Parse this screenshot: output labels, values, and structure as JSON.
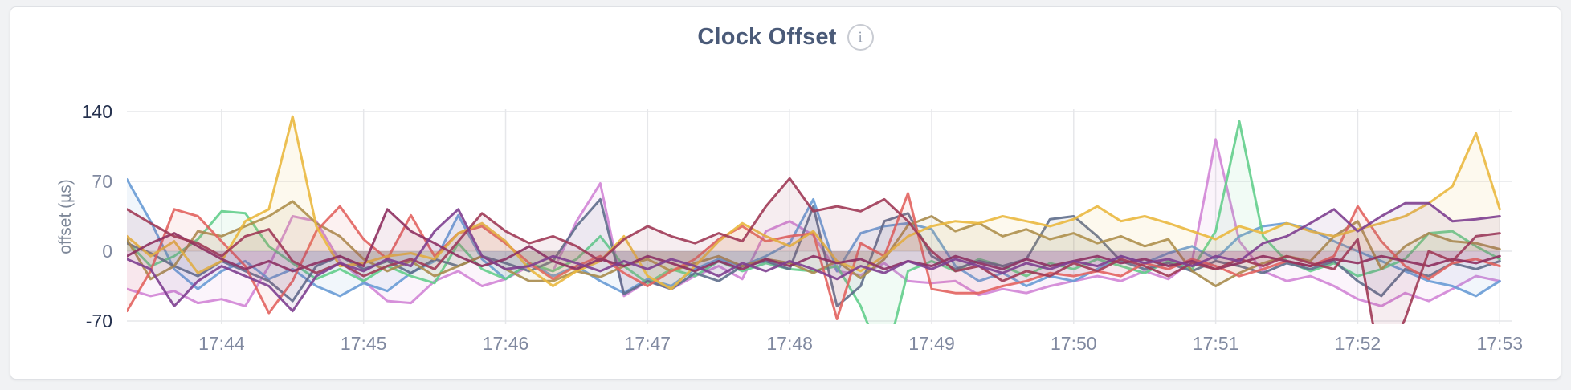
{
  "header": {
    "title": "Clock Offset",
    "info_icon_glyph": "i"
  },
  "colors": {
    "page_background": "#f1f2f4",
    "card_background": "#ffffff",
    "card_border": "#dfe1e5",
    "title_text": "#4a5a78",
    "grid_line": "#e6e7ea",
    "axis_tick_text": "#8089a0",
    "axis_tick_text_dark": "#25314e",
    "axis_title_text": "#7d8798"
  },
  "chart_data": {
    "type": "line",
    "title": "Clock Offset",
    "ylabel": "offset (µs)",
    "xlabel": "",
    "grid": true,
    "legend_position": "none",
    "ylim": [
      -75,
      140
    ],
    "y_ticks": [
      {
        "value": 140,
        "label": "140",
        "emphasis": true
      },
      {
        "value": 70,
        "label": "70",
        "emphasis": false
      },
      {
        "value": 0,
        "label": "0",
        "emphasis": false
      },
      {
        "value": -70,
        "label": "-70",
        "emphasis": true
      }
    ],
    "x_total_seconds": 585,
    "point_interval_seconds": 10,
    "x_ticks": [
      {
        "label": "17:44",
        "seconds": 40
      },
      {
        "label": "17:45",
        "seconds": 100
      },
      {
        "label": "17:46",
        "seconds": 160
      },
      {
        "label": "17:47",
        "seconds": 220
      },
      {
        "label": "17:48",
        "seconds": 280
      },
      {
        "label": "17:49",
        "seconds": 340
      },
      {
        "label": "17:50",
        "seconds": 400
      },
      {
        "label": "17:51",
        "seconds": 460
      },
      {
        "label": "17:52",
        "seconds": 520
      },
      {
        "label": "17:53",
        "seconds": 580
      }
    ],
    "line_width": 3,
    "line_opacity": 0.9,
    "area_fill_opacity": 0.09,
    "series": [
      {
        "name": "orchid",
        "color": "#d285d6",
        "values": [
          -38,
          -45,
          -40,
          -52,
          -48,
          -55,
          -15,
          35,
          30,
          -10,
          -30,
          -50,
          -52,
          -30,
          -20,
          -35,
          -28,
          -15,
          -20,
          30,
          68,
          -45,
          -30,
          -38,
          -25,
          -15,
          -28,
          20,
          30,
          16,
          -20,
          -24,
          -12,
          -30,
          -32,
          -30,
          -44,
          -38,
          -42,
          -35,
          -30,
          -25,
          -30,
          -20,
          -28,
          -10,
          112,
          10,
          -20,
          -30,
          -25,
          -35,
          -48,
          -55,
          -42,
          -50,
          -38,
          -25,
          -30
        ]
      },
      {
        "name": "blue",
        "color": "#689bd5",
        "values": [
          72,
          30,
          -18,
          -38,
          -20,
          -10,
          -28,
          -18,
          -35,
          -45,
          -32,
          -40,
          -22,
          -10,
          36,
          -8,
          -28,
          -12,
          -25,
          -15,
          -30,
          -42,
          -28,
          -35,
          -18,
          -8,
          -15,
          -5,
          8,
          52,
          -20,
          18,
          25,
          28,
          22,
          -15,
          -30,
          -22,
          -35,
          -25,
          -30,
          -18,
          -5,
          -12,
          -2,
          5,
          -8,
          15,
          25,
          28,
          22,
          10,
          0,
          -10,
          -20,
          -30,
          -35,
          -45,
          -30
        ]
      },
      {
        "name": "green",
        "color": "#63ce8c",
        "values": [
          10,
          -15,
          -5,
          12,
          40,
          38,
          5,
          -12,
          -28,
          -18,
          -30,
          -15,
          -25,
          -32,
          8,
          -18,
          -28,
          -12,
          -20,
          -8,
          15,
          -15,
          -32,
          -18,
          -25,
          -10,
          -20,
          -12,
          -18,
          -20,
          -15,
          -55,
          -115,
          -20,
          -10,
          -20,
          -8,
          -15,
          -25,
          -12,
          -18,
          -8,
          -15,
          -22,
          -10,
          -18,
          20,
          130,
          15,
          -10,
          -20,
          -12,
          -25,
          -18,
          -8,
          18,
          20,
          5,
          -8
        ]
      },
      {
        "name": "slate",
        "color": "#5f6e8c",
        "values": [
          8,
          -2,
          -15,
          -25,
          -10,
          -20,
          -30,
          -50,
          -15,
          -5,
          -18,
          -10,
          -22,
          -8,
          -15,
          -5,
          -12,
          -20,
          -10,
          25,
          52,
          -43,
          -30,
          -38,
          -22,
          -30,
          -15,
          -10,
          -18,
          45,
          -55,
          -35,
          30,
          38,
          -5,
          -18,
          -10,
          -15,
          -8,
          32,
          35,
          15,
          -10,
          -18,
          -12,
          -20,
          -10,
          -15,
          -22,
          -12,
          -18,
          -10,
          -30,
          -45,
          -18,
          -25,
          -12,
          -18,
          -10
        ]
      },
      {
        "name": "olive",
        "color": "#a98c4e",
        "values": [
          12,
          -28,
          -15,
          20,
          15,
          25,
          35,
          50,
          28,
          15,
          -8,
          -20,
          -10,
          -25,
          -15,
          -5,
          -18,
          -30,
          -30,
          -20,
          -26,
          -15,
          -8,
          -20,
          -12,
          -5,
          -15,
          -8,
          -12,
          -22,
          -10,
          -27,
          -8,
          26,
          35,
          20,
          28,
          15,
          22,
          12,
          18,
          8,
          15,
          5,
          12,
          -20,
          -35,
          -22,
          -12,
          -5,
          -10,
          15,
          30,
          -18,
          5,
          18,
          10,
          8,
          2
        ]
      },
      {
        "name": "salmon",
        "color": "#e2635f",
        "values": [
          -60,
          -20,
          42,
          35,
          10,
          -15,
          -62,
          -30,
          20,
          45,
          12,
          -8,
          36,
          -5,
          18,
          25,
          8,
          -12,
          -28,
          -15,
          -5,
          -22,
          -35,
          -20,
          -8,
          12,
          25,
          10,
          15,
          18,
          -68,
          8,
          -5,
          58,
          -38,
          -42,
          -42,
          -35,
          -30,
          -22,
          -25,
          -20,
          -25,
          -12,
          -18,
          -8,
          -15,
          -25,
          -18,
          -10,
          -15,
          -5,
          45,
          10,
          -15,
          -28,
          -12,
          -8,
          -15
        ]
      },
      {
        "name": "gold",
        "color": "#eab83f",
        "values": [
          15,
          -5,
          10,
          -22,
          -10,
          30,
          42,
          135,
          25,
          -15,
          -12,
          -5,
          -2,
          -8,
          18,
          28,
          10,
          -18,
          -35,
          -20,
          -10,
          15,
          -25,
          -38,
          -15,
          10,
          28,
          15,
          5,
          20,
          -10,
          -20,
          -5,
          15,
          25,
          30,
          28,
          35,
          30,
          25,
          32,
          45,
          30,
          35,
          28,
          20,
          12,
          25,
          18,
          28,
          20,
          15,
          22,
          28,
          35,
          48,
          65,
          118,
          42
        ]
      },
      {
        "name": "berry",
        "color": "#8e2f5f",
        "values": [
          -5,
          8,
          18,
          5,
          -8,
          -18,
          -10,
          -20,
          -12,
          -5,
          -15,
          42,
          20,
          8,
          -5,
          -15,
          -8,
          5,
          -10,
          -18,
          -8,
          -15,
          -5,
          -12,
          -20,
          -10,
          -18,
          -8,
          -15,
          -5,
          -12,
          -8,
          -18,
          -10,
          -15,
          -5,
          -12,
          -18,
          -8,
          -15,
          -10,
          -5,
          -12,
          -8,
          -15,
          -10,
          -18,
          -12,
          -5,
          -10,
          -15,
          -8,
          -12,
          -5,
          -10,
          -15,
          -8,
          -12,
          -5
        ]
      },
      {
        "name": "wine",
        "color": "#a03a56",
        "values": [
          42,
          28,
          15,
          8,
          -5,
          15,
          22,
          -10,
          -22,
          -12,
          -25,
          -15,
          -8,
          -18,
          10,
          38,
          20,
          8,
          15,
          5,
          -10,
          12,
          25,
          15,
          8,
          18,
          10,
          45,
          73,
          40,
          45,
          40,
          52,
          30,
          0,
          -20,
          -15,
          -30,
          -20,
          -25,
          -12,
          -20,
          -8,
          -15,
          -25,
          -12,
          -18,
          -8,
          -15,
          -5,
          -12,
          -18,
          12,
          -120,
          -68,
          0,
          -10,
          15,
          18
        ]
      },
      {
        "name": "plum",
        "color": "#7e3f90",
        "values": [
          -8,
          -18,
          -55,
          -30,
          -15,
          -25,
          -35,
          -60,
          -25,
          -12,
          -20,
          -8,
          -15,
          20,
          42,
          -5,
          -18,
          -15,
          -5,
          -12,
          -20,
          -10,
          -18,
          -8,
          -15,
          -25,
          -12,
          -20,
          -10,
          -18,
          -28,
          -15,
          -22,
          -10,
          -18,
          -8,
          -15,
          -22,
          -12,
          -18,
          -10,
          -15,
          -5,
          -12,
          -8,
          -15,
          -5,
          -10,
          8,
          15,
          28,
          42,
          20,
          35,
          48,
          48,
          30,
          32,
          35
        ]
      }
    ]
  }
}
